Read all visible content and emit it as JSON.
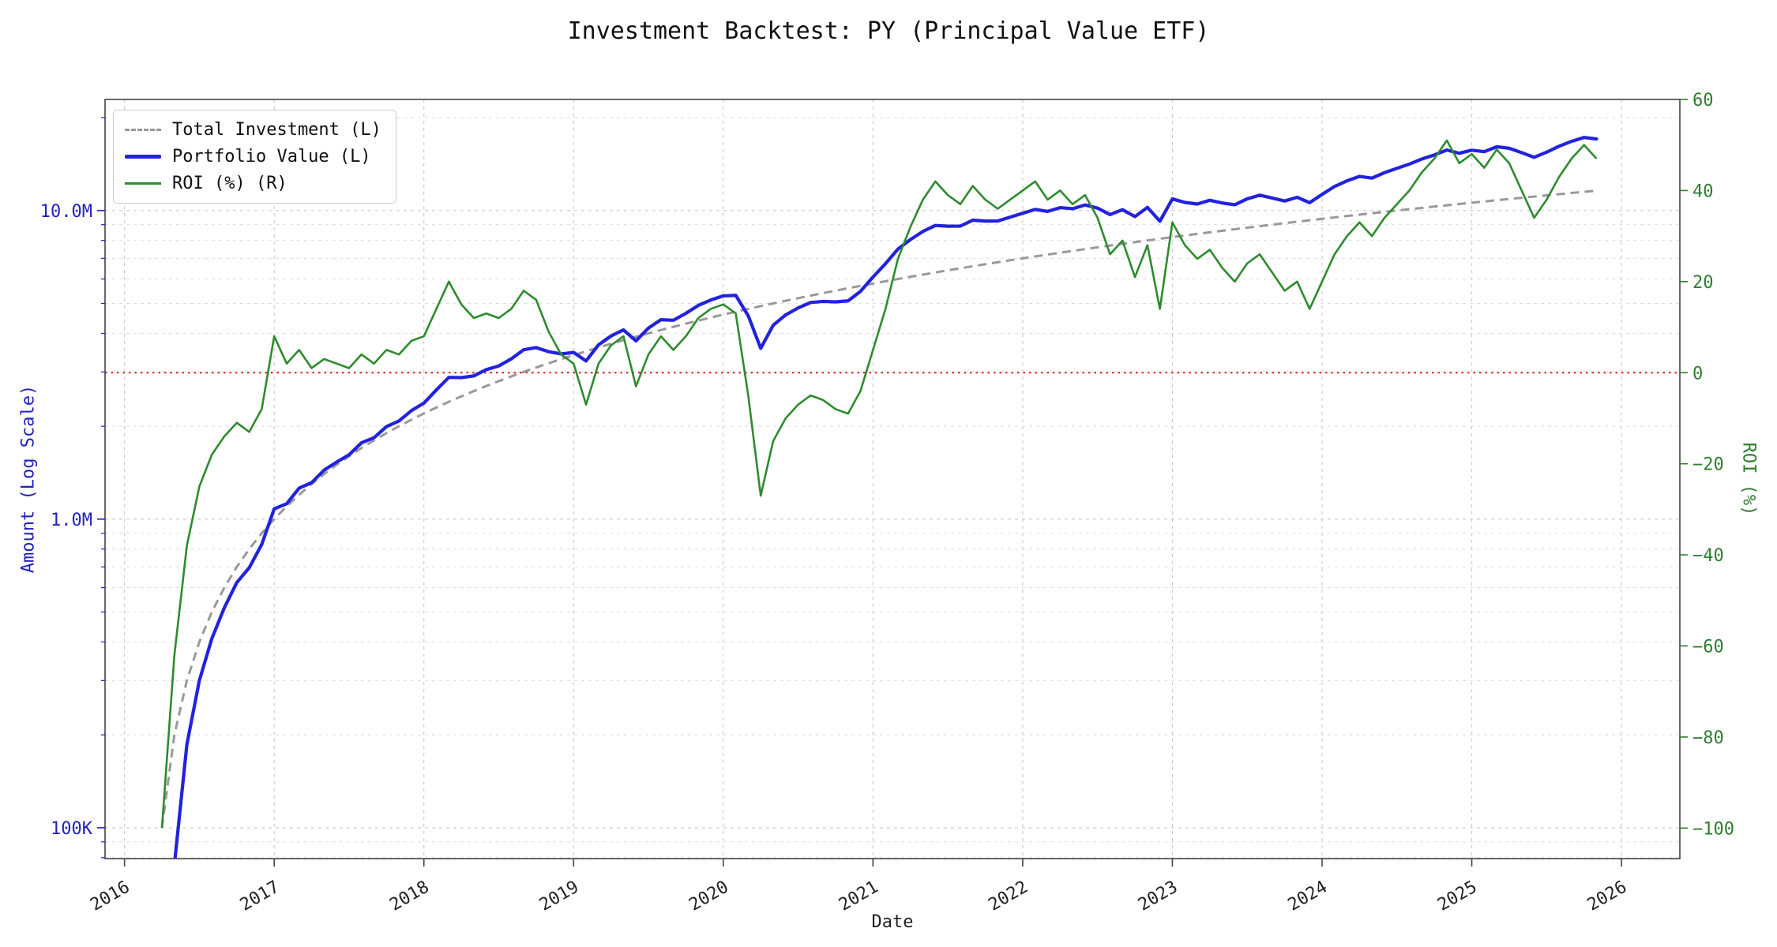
{
  "chart": {
    "title": "Investment Backtest: PY (Principal Value ETF)",
    "x_axis": {
      "title": "Date",
      "range": [
        2015.87,
        2026.39
      ],
      "ticks": [
        2016,
        2017,
        2018,
        2019,
        2020,
        2021,
        2022,
        2023,
        2024,
        2025,
        2026
      ],
      "tick_color": "#222222"
    },
    "left_axis": {
      "title": "Amount (Log Scale)",
      "scale": "log",
      "log_range": [
        4.9,
        7.36
      ],
      "ticks": [
        {
          "value": 100000,
          "label": "100K"
        },
        {
          "value": 1000000,
          "label": "1.0M"
        },
        {
          "value": 10000000,
          "label": "10.0M"
        }
      ],
      "color": "#2222bb"
    },
    "right_axis": {
      "title": "ROI (%)",
      "range": [
        -106.7,
        60
      ],
      "ticks": [
        {
          "value": 60,
          "label": "60"
        },
        {
          "value": 40,
          "label": "40"
        },
        {
          "value": 20,
          "label": "20"
        },
        {
          "value": 0,
          "label": "0"
        },
        {
          "value": -20,
          "label": "−20"
        },
        {
          "value": -40,
          "label": "−40"
        },
        {
          "value": -60,
          "label": "−60"
        },
        {
          "value": -80,
          "label": "−80"
        },
        {
          "value": -100,
          "label": "−100"
        }
      ],
      "zero_line_value": 0,
      "color": "#2e7d2e"
    },
    "style": {
      "grid_color": "#c9c9c9",
      "grid_minor_color": "#dedede",
      "zero_line_color": "#cc2222",
      "spine_color": "#444444",
      "title_color": "#111111",
      "background": "#ffffff"
    }
  },
  "chart_data": {
    "type": "line",
    "title": "Investment Backtest: PY (Principal Value ETF)",
    "xlabel": "Date",
    "ylabel_left": "Amount (Log Scale)",
    "ylabel_right": "ROI (%)",
    "frequency": "monthly",
    "start_year": 2016,
    "start_month": 4,
    "x_start": "2016-04",
    "x_end": "2025-11",
    "points": 116,
    "monthly_contribution": 100000,
    "legend_position": "upper left",
    "grid": true,
    "series": [
      {
        "key": "total_investment",
        "name": "Total Investment (L)",
        "axis": "left",
        "style": "dashed",
        "color": "#999999",
        "derivation": "cumulative: monthly_contribution * month_index (100K, 200K, ... 11.6M)"
      },
      {
        "key": "portfolio_value",
        "name": "Portfolio Value (L)",
        "axis": "left",
        "style": "solid",
        "color": "#2222dd",
        "derivation": "total_investment * (1 + roi_pct/100)"
      },
      {
        "key": "roi",
        "name": "ROI (%) (R)",
        "axis": "right",
        "style": "solid",
        "color": "#2e8b2e",
        "values": [
          -100,
          -62,
          -38,
          -25,
          -18,
          -14,
          -11,
          -13,
          -8,
          8,
          2,
          5,
          1,
          3,
          2,
          1,
          4,
          2,
          5,
          4,
          7,
          8,
          14,
          20,
          15,
          12,
          13,
          12,
          14,
          18,
          16,
          9,
          4,
          2,
          -7,
          2,
          6,
          8,
          -3,
          4,
          8,
          5,
          8,
          12,
          14,
          15,
          13,
          -5,
          -27,
          -15,
          -10,
          -7,
          -5,
          -6,
          -8,
          -9,
          -4,
          5,
          14,
          25,
          32,
          38,
          42,
          39,
          37,
          41,
          38,
          36,
          38,
          40,
          42,
          38,
          40,
          37,
          39,
          34,
          26,
          29,
          21,
          28,
          14,
          33,
          28,
          25,
          27,
          23,
          20,
          24,
          26,
          22,
          18,
          20,
          14,
          20,
          26,
          30,
          33,
          30,
          34,
          37,
          40,
          44,
          47,
          51,
          46,
          48,
          45,
          49,
          46,
          40,
          34,
          38,
          43,
          47,
          50,
          47
        ]
      }
    ]
  }
}
